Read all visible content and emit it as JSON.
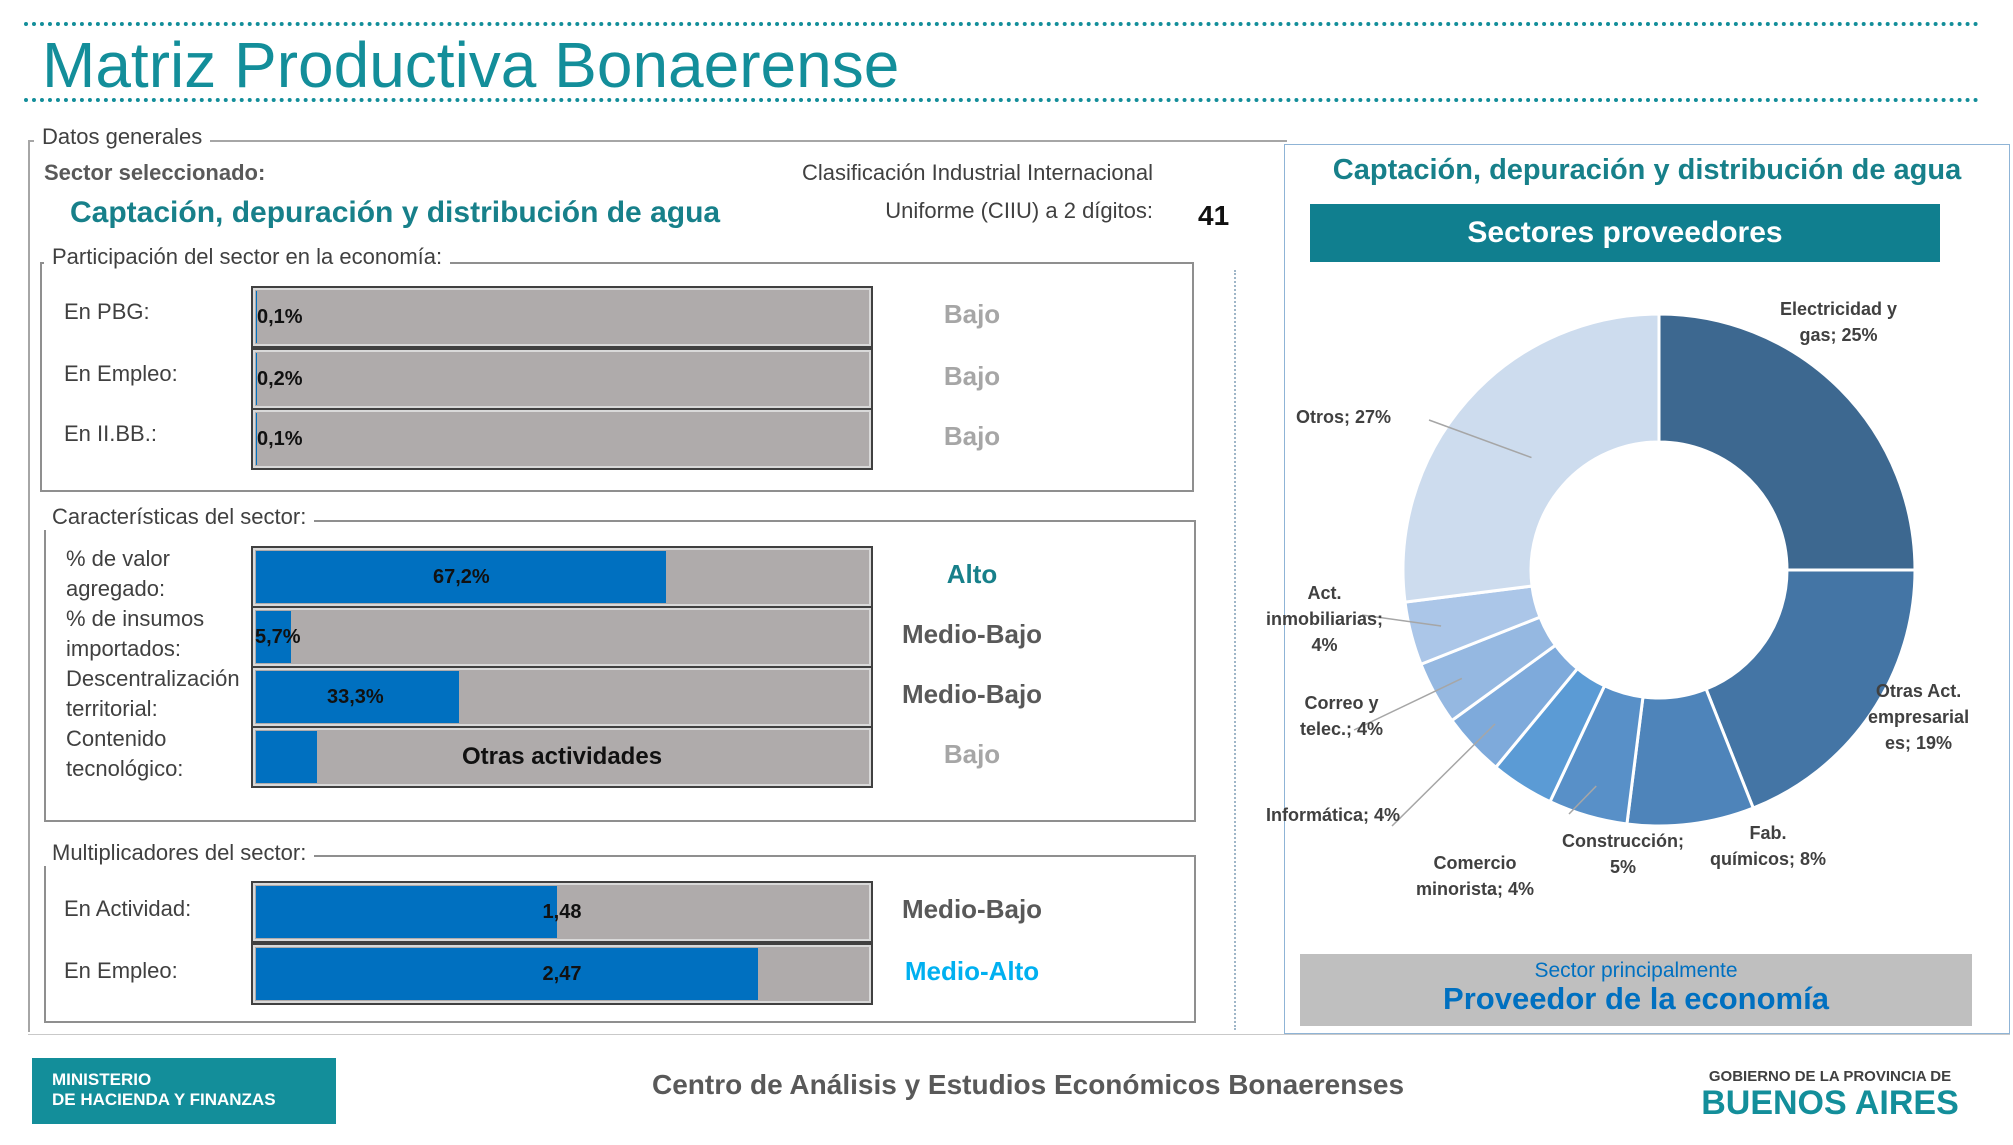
{
  "title": "Matriz Productiva Bonaerense",
  "general": {
    "legend": "Datos generales",
    "sector_label": "Sector seleccionado:",
    "sector_name": "Captación, depuración y distribución de agua",
    "ciiu_line1": "Clasificación Industrial Internacional",
    "ciiu_line2": "Uniforme (CIIU) a 2 dígitos:",
    "ciiu_value": "41"
  },
  "participation": {
    "legend": "Participación del sector en la economía:",
    "rows": [
      {
        "label": "En PBG:",
        "value_text": "0,1%",
        "value": 0.1,
        "level": "Bajo"
      },
      {
        "label": "En Empleo:",
        "value_text": "0,2%",
        "value": 0.2,
        "level": "Bajo"
      },
      {
        "label": "En II.BB.:",
        "value_text": "0,1%",
        "value": 0.1,
        "level": "Bajo"
      }
    ]
  },
  "characteristics": {
    "legend": "Características del sector:",
    "rows": [
      {
        "label_line1": "% de valor",
        "label_line2": "agregado:",
        "value_text": "67,2%",
        "value": 67.2,
        "level": "Alto"
      },
      {
        "label_line1": "% de insumos",
        "label_line2": "importados:",
        "value_text": "5,7%",
        "value": 5.7,
        "level": "Medio-Bajo"
      },
      {
        "label_line1": "Descentralización",
        "label_line2": "territorial:",
        "value_text": "33,3%",
        "value": 33.3,
        "level": "Medio-Bajo"
      },
      {
        "label_line1": "Contenido",
        "label_line2": "tecnológico:",
        "value_text": "Otras actividades",
        "value": 10,
        "level": "Bajo"
      }
    ]
  },
  "multipliers": {
    "legend": "Multiplicadores del sector:",
    "rows": [
      {
        "label": "En Actividad:",
        "value_text": "1,48",
        "value": 1.48,
        "level": "Medio-Bajo"
      },
      {
        "label": "En Empleo:",
        "value_text": "2,47",
        "value": 2.47,
        "level": "Medio-Alto"
      }
    ]
  },
  "right_panel": {
    "sector_name": "Captación, depuración y distribución de agua",
    "providers_title": "Sectores proveedores",
    "footer_line1": "Sector principalmente",
    "footer_line2": "Proveedor de la economía"
  },
  "chart_data": {
    "type": "pie",
    "title": "Sectores proveedores",
    "slices": [
      {
        "name": "Electricidad y gas",
        "value": 25,
        "label_lines": [
          "Electricidad y",
          "gas; 25%"
        ],
        "color": "#3d6890"
      },
      {
        "name": "Otras Act. empresariales",
        "value": 19,
        "label_lines": [
          "Otras Act.",
          "empresarial",
          "es; 19%"
        ],
        "color": "#4475a5"
      },
      {
        "name": "Fab. químicos",
        "value": 8,
        "label_lines": [
          "Fab.",
          "químicos; 8%"
        ],
        "color": "#4e84ba"
      },
      {
        "name": "Construcción",
        "value": 5,
        "label_lines": [
          "Construcción;",
          "5%"
        ],
        "color": "#5890c8"
      },
      {
        "name": "Comercio minorista",
        "value": 4,
        "label_lines": [
          "Comercio",
          "minorista; 4%"
        ],
        "color": "#5b9bd5"
      },
      {
        "name": "Informática",
        "value": 4,
        "label_lines": [
          "Informática; 4%"
        ],
        "color": "#7eaadb"
      },
      {
        "name": "Correo y telec.",
        "value": 4,
        "label_lines": [
          "Correo y",
          "telec.; 4%"
        ],
        "color": "#95b8e1"
      },
      {
        "name": "Act. inmobiliarias",
        "value": 4,
        "label_lines": [
          "Act.",
          "inmobiliarias;",
          "4%"
        ],
        "color": "#abc6e8"
      },
      {
        "name": "Otros",
        "value": 27,
        "label_lines": [
          "Otros; 27%"
        ],
        "color": "#cddcee"
      }
    ]
  },
  "footer": {
    "ministry_line1": "MINISTERIO",
    "ministry_line2": "DE HACIENDA Y FINANZAS",
    "center": "Centro de Análisis y Estudios Económicos Bonaerenses",
    "gov_line1": "GOBIERNO DE LA PROVINCIA DE",
    "gov_line2": "BUENOS AIRES"
  },
  "colors": {
    "teal": "#138e9a",
    "bar_fill": "#0070c0",
    "bar_bg": "#afabab",
    "level_alto": "#17808a",
    "level_medio": "#595959",
    "level_bajo": "#a6a6a6",
    "level_medio_alto": "#00b0f0"
  }
}
